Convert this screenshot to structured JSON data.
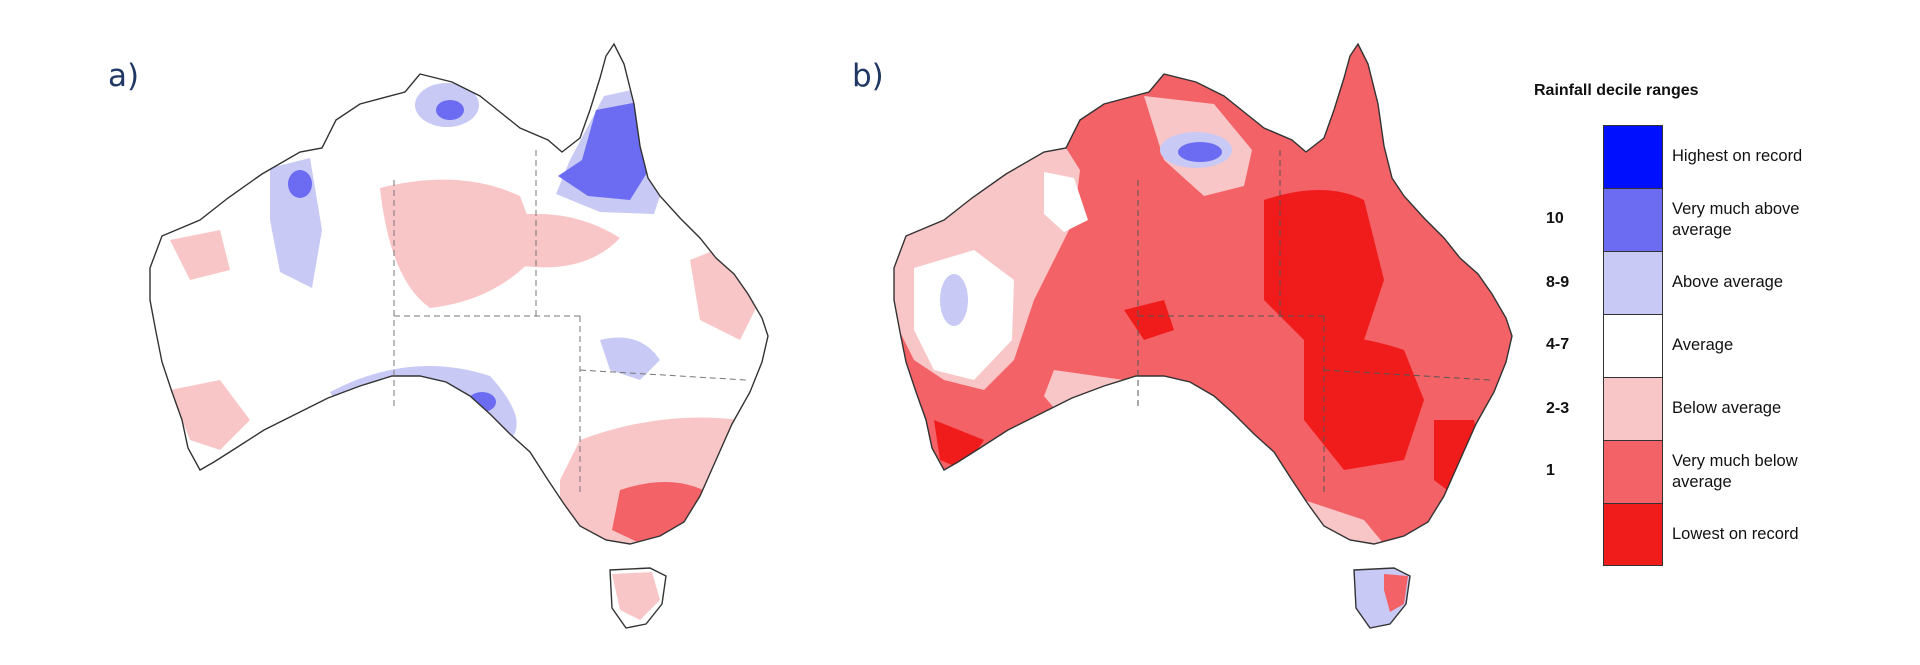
{
  "panels": [
    {
      "label": "a)"
    },
    {
      "label": "b)"
    }
  ],
  "legend": {
    "title": "Rainfall decile ranges",
    "items": [
      {
        "label": "Highest on record",
        "color": "#0010ff"
      },
      {
        "label": "Very much above average",
        "color": "#6b6cf2"
      },
      {
        "label": "Above average",
        "color": "#c8c9f4"
      },
      {
        "label": "Average",
        "color": "#ffffff"
      },
      {
        "label": "Below average",
        "color": "#f9c6c8"
      },
      {
        "label": "Very much below average",
        "color": "#f36266"
      },
      {
        "label": "Lowest on record",
        "color": "#f01c1c"
      }
    ],
    "deciles": [
      "10",
      "8-9",
      "4-7",
      "2-3",
      "1"
    ]
  }
}
